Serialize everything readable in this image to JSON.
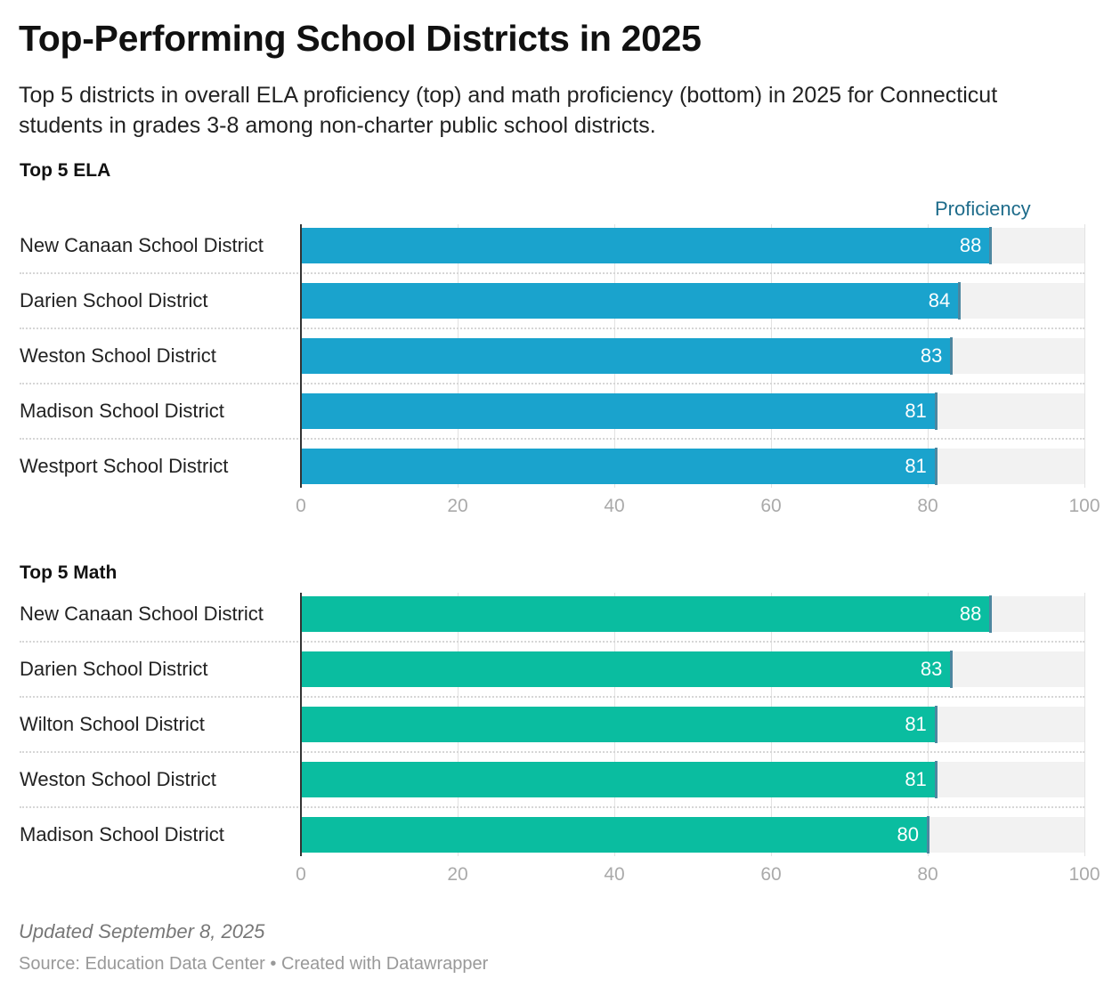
{
  "title": "Top-Performing School Districts in 2025",
  "subtitle": "Top 5 districts in overall ELA proficiency (top) and math proficiency (bottom) in 2025 for Connecticut students in grades 3-8 among non-charter public school districts.",
  "column_header": "Proficiency",
  "footer": {
    "updated": "Updated September 8, 2025",
    "source": "Source: Education Data Center • Created with Datawrapper"
  },
  "chart_data": [
    {
      "type": "bar",
      "title": "Top 5 ELA",
      "color": "#1aa3cd",
      "xlim": [
        0,
        100
      ],
      "ticks": [
        "0",
        "20",
        "40",
        "60",
        "80",
        "100"
      ],
      "categories": [
        "New Canaan School District",
        "Darien School District",
        "Weston School District",
        "Madison School District",
        "Westport School District"
      ],
      "values": [
        88,
        84,
        83,
        81,
        81
      ]
    },
    {
      "type": "bar",
      "title": "Top 5 Math",
      "color": "#0abda0",
      "xlim": [
        0,
        100
      ],
      "ticks": [
        "0",
        "20",
        "40",
        "60",
        "80",
        "100"
      ],
      "categories": [
        "New Canaan School District",
        "Darien School District",
        "Wilton School District",
        "Weston School District",
        "Madison School District"
      ],
      "values": [
        88,
        83,
        81,
        81,
        80
      ]
    }
  ]
}
